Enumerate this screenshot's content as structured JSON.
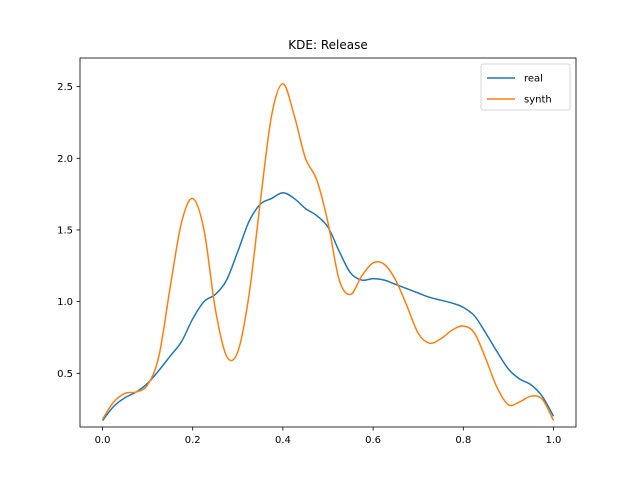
{
  "chart_data": {
    "type": "line",
    "title": "KDE: Release",
    "xlabel": "",
    "ylabel": "",
    "xlim": [
      -0.05,
      1.05
    ],
    "ylim": [
      0.125,
      2.7
    ],
    "xticks": [
      0.0,
      0.2,
      0.4,
      0.6,
      0.8,
      1.0
    ],
    "xtick_labels": [
      "0.0",
      "0.2",
      "0.4",
      "0.6",
      "0.8",
      "1.0"
    ],
    "yticks": [
      0.5,
      1.0,
      1.5,
      2.0,
      2.5
    ],
    "ytick_labels": [
      "0.5",
      "1.0",
      "1.5",
      "2.0",
      "2.5"
    ],
    "legend": {
      "placement": "top-right"
    },
    "series": [
      {
        "name": "real",
        "color": "#1f77b4",
        "x": [
          0.0,
          0.025,
          0.05,
          0.075,
          0.1,
          0.125,
          0.15,
          0.175,
          0.2,
          0.225,
          0.25,
          0.275,
          0.3,
          0.325,
          0.35,
          0.375,
          0.4,
          0.425,
          0.45,
          0.475,
          0.5,
          0.525,
          0.55,
          0.575,
          0.6,
          0.625,
          0.65,
          0.675,
          0.7,
          0.725,
          0.75,
          0.775,
          0.8,
          0.825,
          0.85,
          0.875,
          0.9,
          0.925,
          0.95,
          0.975,
          1.0
        ],
        "y": [
          0.17,
          0.27,
          0.33,
          0.37,
          0.43,
          0.52,
          0.62,
          0.72,
          0.88,
          1.0,
          1.05,
          1.15,
          1.35,
          1.56,
          1.68,
          1.72,
          1.76,
          1.72,
          1.65,
          1.6,
          1.52,
          1.35,
          1.2,
          1.15,
          1.16,
          1.15,
          1.12,
          1.09,
          1.06,
          1.03,
          1.01,
          0.99,
          0.96,
          0.9,
          0.78,
          0.65,
          0.53,
          0.46,
          0.42,
          0.34,
          0.2
        ]
      },
      {
        "name": "synth",
        "color": "#ff7f0e",
        "x": [
          0.0,
          0.025,
          0.05,
          0.075,
          0.1,
          0.125,
          0.15,
          0.175,
          0.2,
          0.225,
          0.25,
          0.275,
          0.3,
          0.325,
          0.35,
          0.375,
          0.4,
          0.425,
          0.45,
          0.475,
          0.5,
          0.525,
          0.55,
          0.575,
          0.6,
          0.625,
          0.65,
          0.675,
          0.7,
          0.725,
          0.75,
          0.775,
          0.8,
          0.825,
          0.85,
          0.875,
          0.9,
          0.925,
          0.95,
          0.975,
          1.0
        ],
        "y": [
          0.18,
          0.3,
          0.36,
          0.37,
          0.42,
          0.62,
          1.1,
          1.55,
          1.72,
          1.5,
          0.95,
          0.62,
          0.65,
          1.05,
          1.7,
          2.3,
          2.52,
          2.3,
          2.0,
          1.85,
          1.55,
          1.15,
          1.05,
          1.18,
          1.27,
          1.26,
          1.15,
          0.97,
          0.78,
          0.71,
          0.74,
          0.8,
          0.83,
          0.78,
          0.6,
          0.4,
          0.28,
          0.3,
          0.34,
          0.32,
          0.17
        ]
      }
    ]
  }
}
